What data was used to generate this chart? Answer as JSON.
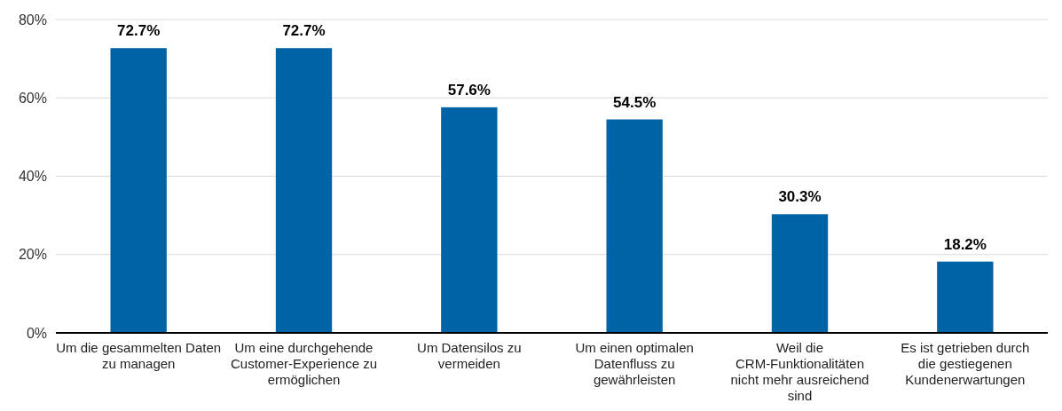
{
  "chart_data": {
    "type": "bar",
    "categories": [
      "Um die gesammelten Daten zu managen",
      "Um eine durchgehende Customer-Experience zu ermöglichen",
      "Um Datensilos zu vermeiden",
      "Um einen optimalen Datenfluss zu gewährleisten",
      "Weil die CRM-Funktionalitäten nicht mehr ausreichend sind",
      "Es ist getrieben durch die gestiegenen Kundenerwartungen"
    ],
    "values": [
      72.7,
      72.7,
      57.6,
      54.5,
      30.3,
      18.2
    ],
    "value_labels": [
      "72.7%",
      "72.7%",
      "57.6%",
      "54.5%",
      "30.3%",
      "18.2%"
    ],
    "color": "#0063a6",
    "ylim": [
      0,
      80
    ],
    "yticks": [
      {
        "value": 0,
        "label": "0%"
      },
      {
        "value": 20,
        "label": "20%"
      },
      {
        "value": 40,
        "label": "40%"
      },
      {
        "value": 60,
        "label": "60%"
      },
      {
        "value": 80,
        "label": "80%"
      }
    ],
    "grid": "y"
  }
}
